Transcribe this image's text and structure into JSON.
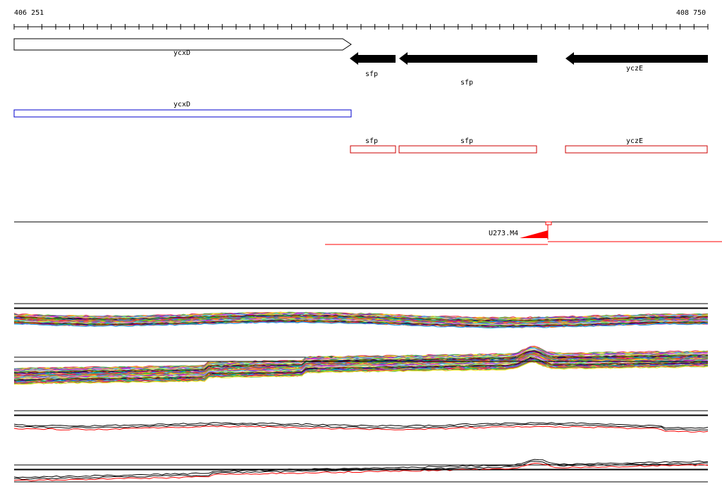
{
  "ruler": {
    "start_label": "406 251",
    "end_label": "408 750"
  },
  "colors": {
    "gene_outline": "#000000",
    "gene_fill_reverse": "#000000",
    "transcript_forward": "#0000cc",
    "transcript_reverse": "#cc0000",
    "accent_red": "#ff0000"
  },
  "genes": [
    {
      "name": "ycxD",
      "strand": "+"
    },
    {
      "name": "sfp",
      "strand": "-"
    },
    {
      "name": "sfp",
      "strand": "-"
    },
    {
      "name": "yczE",
      "strand": "-"
    }
  ],
  "transcripts": [
    {
      "name": "ycxD",
      "strand": "+"
    },
    {
      "name": "sfp",
      "strand": "-"
    },
    {
      "name": "sfp",
      "strand": "-"
    },
    {
      "name": "yczE",
      "strand": "-"
    }
  ],
  "feature": {
    "label": "U273.M4"
  }
}
